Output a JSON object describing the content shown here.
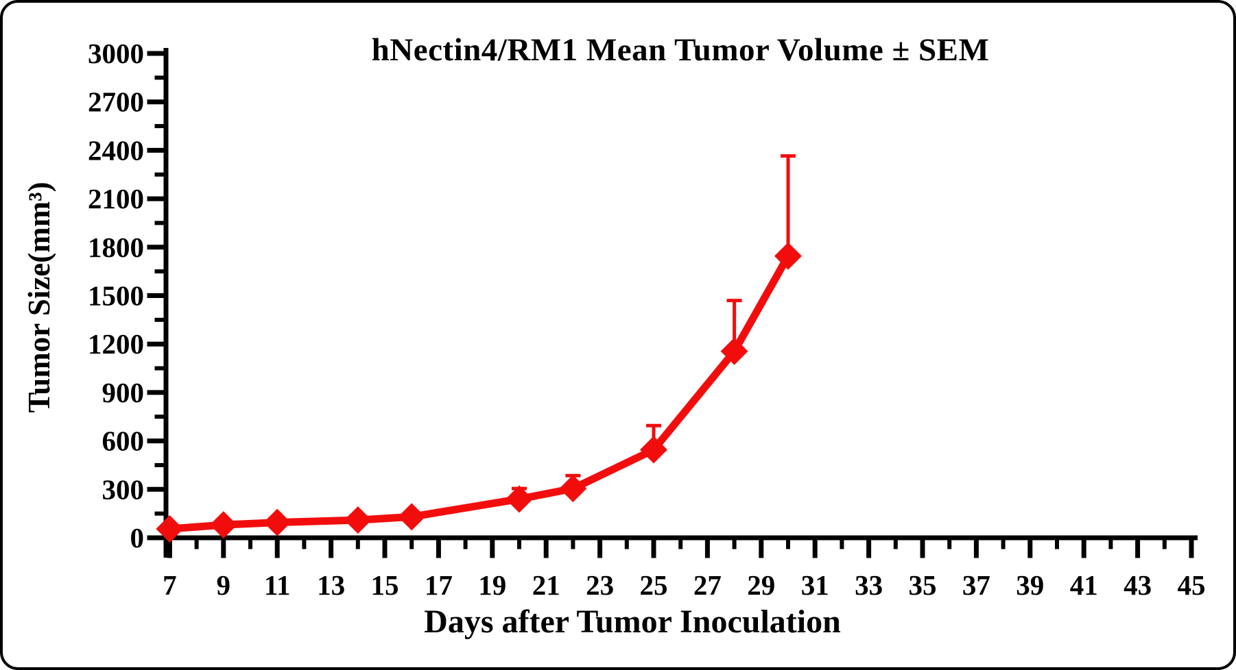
{
  "frame": {
    "background": "#ffffff",
    "border_color": "#000000"
  },
  "chart_data": {
    "type": "line",
    "title": "hNectin4/RM1 Mean Tumor Volume ± SEM",
    "xlabel": "Days after Tumor Inoculation",
    "ylabel": "Tumor Size(mm³)",
    "grid": false,
    "legend": "none",
    "error_bars": "upper-only",
    "axis_color": "#000000",
    "series": [
      {
        "name": "hNectin4/RM1 mean tumor volume",
        "color": "#F20D0D",
        "marker": "diamond",
        "x": [
          7,
          9,
          11,
          14,
          16,
          20,
          22,
          25,
          28,
          30
        ],
        "y": [
          55,
          80,
          95,
          110,
          130,
          240,
          305,
          545,
          1155,
          1745
        ],
        "sem_upper": [
          0,
          0,
          0,
          0,
          0,
          65,
          80,
          150,
          315,
          620
        ]
      }
    ],
    "x_axis": {
      "min": 7,
      "max": 45,
      "minor_step": 1,
      "major_step": 2,
      "labels": [
        7,
        9,
        11,
        13,
        15,
        17,
        19,
        21,
        23,
        25,
        27,
        29,
        31,
        33,
        35,
        37,
        39,
        41,
        43,
        45
      ]
    },
    "y_axis": {
      "min": 0,
      "max": 3000,
      "minor_step": 150,
      "major_step": 300,
      "labels": [
        0,
        300,
        600,
        900,
        1200,
        1500,
        1800,
        2100,
        2400,
        2700,
        3000
      ]
    }
  }
}
